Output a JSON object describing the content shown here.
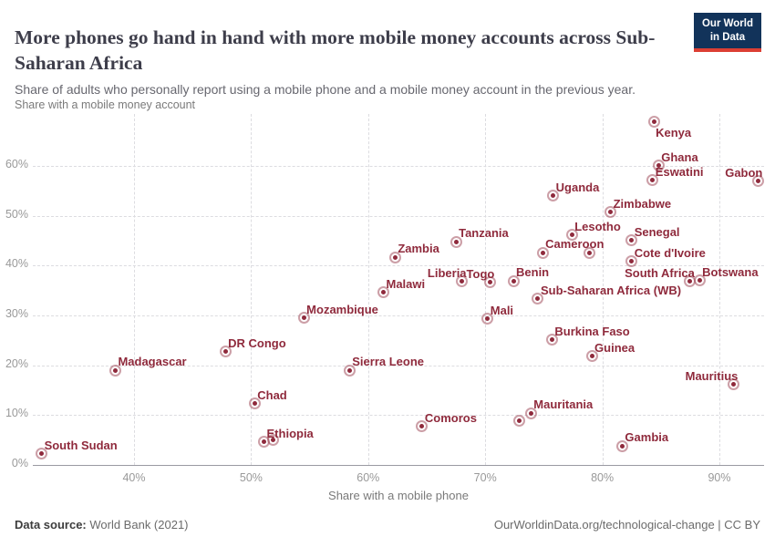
{
  "header": {
    "title": "More phones go hand in hand with more mobile money accounts across Sub-Saharan Africa",
    "subtitle": "Share of adults who personally report using a mobile phone and a mobile money account in the previous year.",
    "logo_line1": "Our World",
    "logo_line2": "in Data"
  },
  "footer": {
    "source_label": "Data source:",
    "source_value": " World Bank (2021)",
    "right_text": "OurWorldinData.org/technological-change | CC BY"
  },
  "colors": {
    "accent": "#8f2a3c",
    "grid": "#dcdce0",
    "axis": "#9a9aa2",
    "tick_text": "#999999",
    "logo_bg": "#12335a",
    "logo_stripe": "#dc3f34"
  },
  "chart_data": {
    "type": "scatter",
    "title": "More phones go hand in hand with more mobile money accounts across Sub-Saharan Africa",
    "xlabel": "Share with a mobile phone",
    "ylabel": "Share with a mobile money account",
    "xlim": [
      31,
      94
    ],
    "ylim": [
      0,
      70
    ],
    "x_ticks": [
      40,
      50,
      60,
      70,
      80,
      90
    ],
    "y_ticks": [
      0,
      10,
      20,
      30,
      40,
      50,
      60
    ],
    "tick_suffix": "%",
    "grid": "dashed",
    "legend": "none",
    "points": [
      {
        "name": "Kenya",
        "x": 84.4,
        "y": 68.8,
        "lp": "br"
      },
      {
        "name": "Ghana",
        "x": 84.8,
        "y": 60.0,
        "lp": "tr"
      },
      {
        "name": "Eswatini",
        "x": 84.3,
        "y": 57.1,
        "lp": "tr"
      },
      {
        "name": "Gabon",
        "x": 93.3,
        "y": 56.9,
        "lp": "tl"
      },
      {
        "name": "Uganda",
        "x": 75.8,
        "y": 54.0,
        "lp": "tr"
      },
      {
        "name": "Zimbabwe",
        "x": 80.7,
        "y": 50.7,
        "lp": "tr"
      },
      {
        "name": "Lesotho",
        "x": 77.4,
        "y": 46.1,
        "lp": "tr"
      },
      {
        "name": "Senegal",
        "x": 82.5,
        "y": 45.0,
        "lp": "tr"
      },
      {
        "name": "Tanzania",
        "x": 67.5,
        "y": 44.8,
        "lp": "tr"
      },
      {
        "name": "",
        "x": 78.9,
        "y": 42.6,
        "lp": "none"
      },
      {
        "name": "Cameroon",
        "x": 74.9,
        "y": 42.6,
        "lp": "tr"
      },
      {
        "name": "Zambia",
        "x": 62.3,
        "y": 41.7,
        "lp": "tr"
      },
      {
        "name": "Cote d'Ivoire",
        "x": 82.5,
        "y": 40.8,
        "lp": "tr"
      },
      {
        "name": "Botswana",
        "x": 88.3,
        "y": 37.0,
        "lp": "tr"
      },
      {
        "name": "South Africa",
        "x": 87.5,
        "y": 36.8,
        "lp": "tl"
      },
      {
        "name": "Benin",
        "x": 72.4,
        "y": 36.9,
        "lp": "tr"
      },
      {
        "name": "Togo",
        "x": 70.4,
        "y": 36.6,
        "lp": "tl"
      },
      {
        "name": "Liberia",
        "x": 68.0,
        "y": 36.8,
        "lp": "tl"
      },
      {
        "name": "Malawi",
        "x": 61.3,
        "y": 34.6,
        "lp": "tr"
      },
      {
        "name": "Sub-Saharan Africa (WB)",
        "x": 74.5,
        "y": 33.3,
        "lp": "tr"
      },
      {
        "name": "Mozambique",
        "x": 54.5,
        "y": 29.5,
        "lp": "tr"
      },
      {
        "name": "Mali",
        "x": 70.2,
        "y": 29.3,
        "lp": "tr"
      },
      {
        "name": "Burkina Faso",
        "x": 75.7,
        "y": 25.1,
        "lp": "tr"
      },
      {
        "name": "DR Congo",
        "x": 47.8,
        "y": 22.7,
        "lp": "tr"
      },
      {
        "name": "Guinea",
        "x": 79.1,
        "y": 21.8,
        "lp": "tr"
      },
      {
        "name": "Madagascar",
        "x": 38.4,
        "y": 19.0,
        "lp": "tr"
      },
      {
        "name": "Sierra Leone",
        "x": 58.4,
        "y": 19.0,
        "lp": "tr"
      },
      {
        "name": "Mauritius",
        "x": 91.2,
        "y": 16.1,
        "lp": "tl"
      },
      {
        "name": "Chad",
        "x": 50.3,
        "y": 12.3,
        "lp": "tr"
      },
      {
        "name": "Mauritania",
        "x": 73.9,
        "y": 10.4,
        "lp": "tr"
      },
      {
        "name": "",
        "x": 72.9,
        "y": 8.8,
        "lp": "none"
      },
      {
        "name": "Comoros",
        "x": 64.6,
        "y": 7.7,
        "lp": "tr"
      },
      {
        "name": "",
        "x": 51.9,
        "y": 5.0,
        "lp": "none"
      },
      {
        "name": "Ethiopia",
        "x": 51.1,
        "y": 4.6,
        "lp": "tr"
      },
      {
        "name": "Gambia",
        "x": 81.7,
        "y": 3.8,
        "lp": "tr"
      },
      {
        "name": "South Sudan",
        "x": 32.1,
        "y": 2.2,
        "lp": "tr"
      }
    ]
  }
}
